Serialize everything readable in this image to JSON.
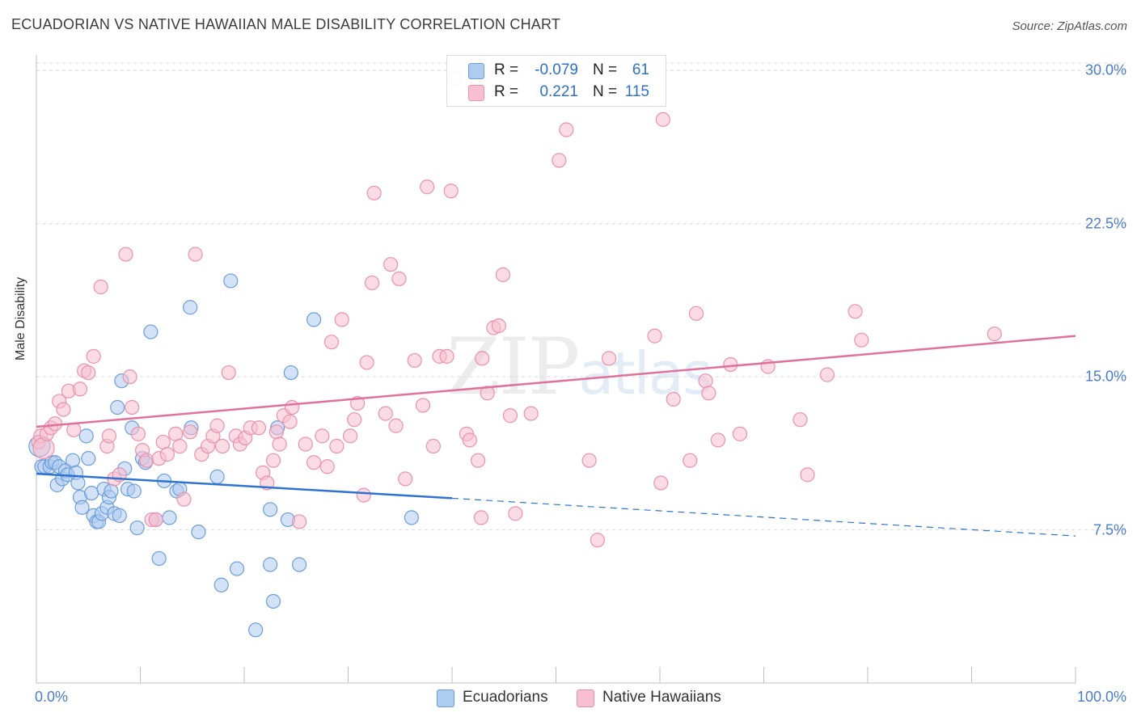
{
  "title": "ECUADORIAN VS NATIVE HAWAIIAN MALE DISABILITY CORRELATION CHART",
  "source": "Source: ZipAtlas.com",
  "watermark": {
    "zip": "ZIP",
    "atlas": "atlas"
  },
  "colors": {
    "ecuadorian_fill": "#aecbf0",
    "ecuadorian_stroke": "#6b9ed9",
    "ecuadorian_line": "#2f73d0",
    "hawaiian_fill": "#f7bfd0",
    "hawaiian_stroke": "#e991ad",
    "hawaiian_line": "#e0719a",
    "axis_text": "#4a7cc9",
    "grid": "#d9d9d9"
  },
  "stats": [
    {
      "r_label": "R =",
      "r_value": "-0.079",
      "n_label": "N =",
      "n_value": "61"
    },
    {
      "r_label": "R =",
      "r_value": "0.221",
      "n_label": "N =",
      "n_value": "115"
    }
  ],
  "legend": [
    "Ecuadorians",
    "Native Hawaiians"
  ],
  "chart_data": {
    "type": "scatter",
    "title": "ECUADORIAN VS NATIVE HAWAIIAN MALE DISABILITY CORRELATION CHART",
    "xlabel": "",
    "ylabel": "Male Disability",
    "xlim": [
      0,
      100
    ],
    "ylim": [
      0,
      31
    ],
    "x_ticks": [
      "0.0%",
      "100.0%"
    ],
    "y_ticks": [
      {
        "value": 7.5,
        "label": "7.5%"
      },
      {
        "value": 15.0,
        "label": "15.0%"
      },
      {
        "value": 22.5,
        "label": "22.5%"
      },
      {
        "value": 30.0,
        "label": "30.0%"
      }
    ],
    "grid": true,
    "legend_position": "bottom-center",
    "series": [
      {
        "name": "Ecuadorians",
        "trend": {
          "x": [
            0,
            40,
            100
          ],
          "y": [
            10.25,
            9.05,
            7.2
          ],
          "solid_until": 40
        },
        "points": [
          [
            0.3,
            11.6
          ],
          [
            0.5,
            10.6
          ],
          [
            0.8,
            10.6
          ],
          [
            1.3,
            10.6
          ],
          [
            1.5,
            10.8
          ],
          [
            1.8,
            10.8
          ],
          [
            2.0,
            9.7
          ],
          [
            2.2,
            10.6
          ],
          [
            2.5,
            10.0
          ],
          [
            2.8,
            10.4
          ],
          [
            3.0,
            10.2
          ],
          [
            3.5,
            10.9
          ],
          [
            3.8,
            10.3
          ],
          [
            4.0,
            9.8
          ],
          [
            4.2,
            9.1
          ],
          [
            4.4,
            8.6
          ],
          [
            4.8,
            12.1
          ],
          [
            5.0,
            11.0
          ],
          [
            5.3,
            9.3
          ],
          [
            5.5,
            8.2
          ],
          [
            5.8,
            7.9
          ],
          [
            6.0,
            7.9
          ],
          [
            6.3,
            8.3
          ],
          [
            6.5,
            9.5
          ],
          [
            6.8,
            8.6
          ],
          [
            7.0,
            9.1
          ],
          [
            7.2,
            9.4
          ],
          [
            7.5,
            8.3
          ],
          [
            7.8,
            13.5
          ],
          [
            8.0,
            8.2
          ],
          [
            8.2,
            14.8
          ],
          [
            8.5,
            10.5
          ],
          [
            8.8,
            9.5
          ],
          [
            9.2,
            12.5
          ],
          [
            9.4,
            9.4
          ],
          [
            9.7,
            7.6
          ],
          [
            10.2,
            11.0
          ],
          [
            10.5,
            10.8
          ],
          [
            11.0,
            17.2
          ],
          [
            11.5,
            8.0
          ],
          [
            11.8,
            6.1
          ],
          [
            12.3,
            9.9
          ],
          [
            12.8,
            8.1
          ],
          [
            13.5,
            9.4
          ],
          [
            13.8,
            9.5
          ],
          [
            14.8,
            18.4
          ],
          [
            14.9,
            12.5
          ],
          [
            15.6,
            7.4
          ],
          [
            17.4,
            10.1
          ],
          [
            17.8,
            4.8
          ],
          [
            18.7,
            19.7
          ],
          [
            19.3,
            5.6
          ],
          [
            21.1,
            2.6
          ],
          [
            22.5,
            8.5
          ],
          [
            22.5,
            5.8
          ],
          [
            22.8,
            4.0
          ],
          [
            23.2,
            12.5
          ],
          [
            24.2,
            8.0
          ],
          [
            24.5,
            15.2
          ],
          [
            25.3,
            5.8
          ],
          [
            26.7,
            17.8
          ],
          [
            36.1,
            8.1
          ]
        ]
      },
      {
        "name": "Native Hawaiians",
        "trend": {
          "x": [
            0,
            100
          ],
          "y": [
            12.55,
            17.0
          ],
          "solid_until": 100
        },
        "points": [
          [
            0.2,
            11.8
          ],
          [
            0.4,
            12.1
          ],
          [
            0.7,
            11.5
          ],
          [
            1.0,
            12.2
          ],
          [
            1.4,
            12.5
          ],
          [
            1.8,
            12.7
          ],
          [
            2.2,
            13.8
          ],
          [
            2.6,
            13.4
          ],
          [
            3.1,
            14.3
          ],
          [
            3.6,
            12.4
          ],
          [
            4.2,
            14.4
          ],
          [
            4.6,
            15.3
          ],
          [
            5.0,
            15.2
          ],
          [
            5.5,
            16.0
          ],
          [
            6.2,
            19.4
          ],
          [
            6.8,
            11.6
          ],
          [
            7.0,
            12.1
          ],
          [
            7.5,
            10.0
          ],
          [
            8.0,
            10.2
          ],
          [
            8.6,
            21.0
          ],
          [
            9.0,
            15.0
          ],
          [
            9.2,
            13.5
          ],
          [
            9.8,
            12.2
          ],
          [
            10.2,
            11.4
          ],
          [
            10.6,
            10.9
          ],
          [
            11.1,
            8.0
          ],
          [
            11.5,
            8.0
          ],
          [
            11.8,
            11.0
          ],
          [
            12.2,
            11.8
          ],
          [
            12.6,
            11.2
          ],
          [
            13.4,
            12.2
          ],
          [
            13.8,
            11.6
          ],
          [
            14.2,
            9.0
          ],
          [
            14.8,
            12.3
          ],
          [
            15.3,
            21.0
          ],
          [
            15.9,
            11.2
          ],
          [
            16.5,
            11.6
          ],
          [
            17.0,
            12.1
          ],
          [
            17.4,
            12.6
          ],
          [
            17.9,
            11.6
          ],
          [
            18.5,
            15.2
          ],
          [
            19.2,
            12.1
          ],
          [
            19.6,
            11.7
          ],
          [
            20.1,
            12.0
          ],
          [
            20.6,
            12.5
          ],
          [
            21.4,
            12.5
          ],
          [
            21.8,
            10.3
          ],
          [
            22.2,
            9.8
          ],
          [
            22.8,
            10.9
          ],
          [
            23.1,
            12.3
          ],
          [
            23.4,
            11.7
          ],
          [
            23.8,
            13.1
          ],
          [
            24.4,
            12.8
          ],
          [
            24.6,
            13.5
          ],
          [
            25.3,
            7.9
          ],
          [
            25.9,
            11.7
          ],
          [
            26.7,
            10.8
          ],
          [
            27.5,
            12.1
          ],
          [
            28.0,
            10.6
          ],
          [
            28.4,
            16.7
          ],
          [
            28.9,
            11.6
          ],
          [
            29.4,
            17.8
          ],
          [
            30.2,
            12.1
          ],
          [
            30.6,
            12.9
          ],
          [
            30.9,
            13.7
          ],
          [
            31.5,
            9.2
          ],
          [
            31.8,
            15.7
          ],
          [
            32.3,
            19.6
          ],
          [
            32.5,
            24.0
          ],
          [
            33.6,
            13.2
          ],
          [
            34.1,
            20.5
          ],
          [
            34.6,
            12.6
          ],
          [
            34.9,
            19.8
          ],
          [
            35.5,
            10.0
          ],
          [
            36.4,
            15.8
          ],
          [
            37.2,
            13.6
          ],
          [
            37.6,
            24.3
          ],
          [
            38.2,
            11.6
          ],
          [
            38.8,
            16.0
          ],
          [
            39.5,
            16.0
          ],
          [
            39.9,
            24.1
          ],
          [
            40.3,
            29.6
          ],
          [
            41.4,
            12.2
          ],
          [
            41.7,
            11.9
          ],
          [
            42.5,
            10.9
          ],
          [
            42.8,
            8.1
          ],
          [
            42.9,
            15.9
          ],
          [
            43.4,
            14.2
          ],
          [
            44.0,
            17.4
          ],
          [
            44.5,
            17.5
          ],
          [
            44.9,
            20.0
          ],
          [
            45.6,
            13.1
          ],
          [
            46.1,
            8.3
          ],
          [
            47.6,
            13.2
          ],
          [
            50.3,
            25.6
          ],
          [
            51.0,
            27.1
          ],
          [
            53.2,
            10.9
          ],
          [
            54.0,
            7.0
          ],
          [
            55.1,
            15.9
          ],
          [
            59.5,
            17.0
          ],
          [
            60.1,
            9.8
          ],
          [
            60.3,
            27.6
          ],
          [
            61.3,
            13.9
          ],
          [
            62.9,
            10.9
          ],
          [
            63.5,
            18.1
          ],
          [
            64.4,
            14.8
          ],
          [
            64.7,
            14.2
          ],
          [
            65.6,
            11.9
          ],
          [
            66.8,
            15.6
          ],
          [
            67.7,
            12.2
          ],
          [
            70.4,
            15.5
          ],
          [
            73.5,
            12.9
          ],
          [
            74.2,
            10.2
          ],
          [
            76.1,
            15.1
          ],
          [
            78.8,
            18.2
          ],
          [
            79.4,
            16.8
          ],
          [
            92.2,
            17.1
          ]
        ]
      }
    ]
  }
}
